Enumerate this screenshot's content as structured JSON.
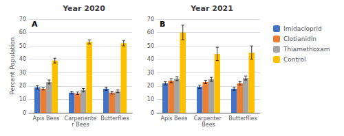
{
  "chart_data": [
    {
      "type": "bar",
      "title": "Year 2020",
      "ylabel": "Percent Population",
      "annotation": "A",
      "categories": [
        "Apis Bees",
        "Carpenenter Bees",
        "Butterflies"
      ],
      "series": [
        {
          "name": "Imidacloprid",
          "color": "#4472C4",
          "values": [
            19,
            15,
            18
          ],
          "errors": [
            1.2,
            1.0,
            1.2
          ]
        },
        {
          "name": "Clotianidin",
          "color": "#ED7D31",
          "values": [
            18,
            14.5,
            15
          ],
          "errors": [
            1.0,
            1.0,
            1.0
          ]
        },
        {
          "name": "Thiamethoxam",
          "color": "#A5A5A5",
          "values": [
            23,
            17,
            16
          ],
          "errors": [
            1.5,
            1.2,
            1.0
          ]
        },
        {
          "name": "Control",
          "color": "#FFC000",
          "values": [
            39,
            53,
            52
          ],
          "errors": [
            1.8,
            1.5,
            2.0
          ]
        }
      ],
      "ylim": [
        0,
        70
      ],
      "yticks": [
        0,
        10,
        20,
        30,
        40,
        50,
        60,
        70
      ],
      "grid": true
    },
    {
      "type": "bar",
      "title": "Year 2021",
      "annotation": "B",
      "categories": [
        "Apis Bees",
        "Carpenter Bees",
        "Butterflies"
      ],
      "series": [
        {
          "name": "Imidacloprid",
          "color": "#4472C4",
          "values": [
            22,
            19.5,
            18
          ],
          "errors": [
            1.2,
            1.2,
            1.2
          ]
        },
        {
          "name": "Clotianidin",
          "color": "#ED7D31",
          "values": [
            24,
            23,
            22
          ],
          "errors": [
            1.5,
            1.2,
            1.2
          ]
        },
        {
          "name": "Thiamethoxam",
          "color": "#A5A5A5",
          "values": [
            25.5,
            25,
            26
          ],
          "errors": [
            1.5,
            1.5,
            1.5
          ]
        },
        {
          "name": "Control",
          "color": "#FFC000",
          "values": [
            60,
            44,
            45
          ],
          "errors": [
            5.5,
            5.0,
            5.0
          ]
        }
      ],
      "ylim": [
        0,
        70
      ],
      "yticks": [
        0,
        10,
        20,
        30,
        40,
        50,
        60,
        70
      ],
      "grid": true,
      "legend": "right"
    }
  ]
}
